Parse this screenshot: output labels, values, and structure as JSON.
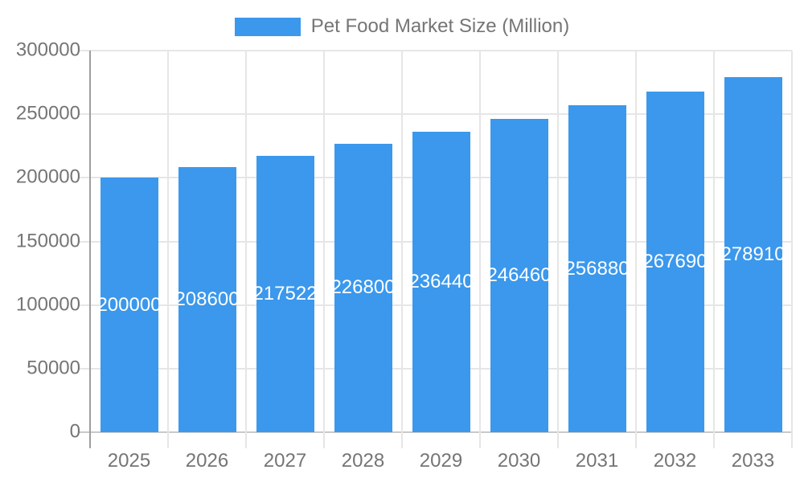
{
  "legend": {
    "label": "Pet Food Market Size (Million)"
  },
  "chart_data": {
    "type": "bar",
    "title": "Pet Food Market Size (Million)",
    "categories": [
      "2025",
      "2026",
      "2027",
      "2028",
      "2029",
      "2030",
      "2031",
      "2032",
      "2033"
    ],
    "series": [
      {
        "name": "Pet Food Market Size (Million)",
        "values": [
          200000,
          208600,
          217522,
          226800,
          236440,
          246460,
          256880,
          267690,
          278910
        ]
      }
    ],
    "value_labels": [
      "200000",
      "208600",
      "217522",
      "226800",
      "236440",
      "246460",
      "256880",
      "267690",
      "278910"
    ],
    "xlabel": "",
    "ylabel": "",
    "ylim": [
      0,
      300000
    ],
    "y_ticks": [
      0,
      50000,
      100000,
      150000,
      200000,
      250000,
      300000
    ],
    "grid": true,
    "legend_position": "top-center",
    "colors": {
      "bar": "#3b98ec",
      "axis_text": "#757575",
      "gridline": "#e6e6e6",
      "baseline": "#c9c9c9",
      "axis_line": "#9e9e9e",
      "bar_label_text": "#ffffff"
    }
  }
}
